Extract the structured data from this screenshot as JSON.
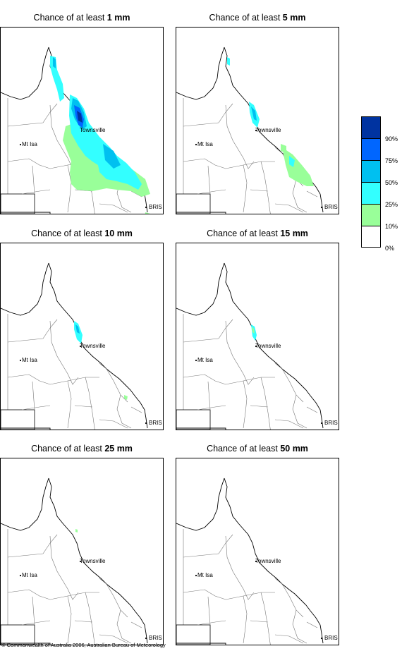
{
  "panels": [
    {
      "prefix": "Chance of at least ",
      "value": "1 mm"
    },
    {
      "prefix": "Chance of at least ",
      "value": "5 mm"
    },
    {
      "prefix": "Chance of at least ",
      "value": "10 mm"
    },
    {
      "prefix": "Chance of at least ",
      "value": "15 mm"
    },
    {
      "prefix": "Chance of at least ",
      "value": "25 mm"
    },
    {
      "prefix": "Chance of at least ",
      "value": "50 mm"
    }
  ],
  "places": {
    "townsville": "Townsville",
    "mt_isa": "Mt Isa",
    "bris": "BRIS"
  },
  "legend": {
    "labels": [
      "90%",
      "75%",
      "50%",
      "25%",
      "10%",
      "0%"
    ],
    "colors": [
      "#0033a0",
      "#0066ff",
      "#00c0f0",
      "#33ffff",
      "#99ff99",
      "#ffffff"
    ]
  },
  "copyright": "© Commonwealth of Australia 2006, Australian Bureau of Meteorology"
}
